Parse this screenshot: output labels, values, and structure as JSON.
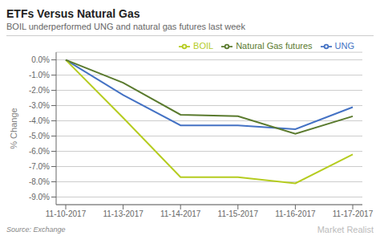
{
  "chart_data": {
    "type": "line",
    "title": "ETFs Versus Natural Gas",
    "subtitle": "BOIL underperformed UNG and natural gas futures last week",
    "source": "Source: Exchange",
    "watermark": "Market Realist",
    "y_label": "% Change",
    "categories": [
      "11-10-2017",
      "11-13-2017",
      "11-14-2017",
      "11-15-2017",
      "11-16-2017",
      "11-17-2017"
    ],
    "series": [
      {
        "name": "UNG",
        "color": "#4472c4",
        "values": [
          0.0,
          -2.3,
          -4.3,
          -4.3,
          -4.55,
          -3.1
        ]
      },
      {
        "name": "BOIL",
        "color": "#b5cc1f",
        "values": [
          0.0,
          -3.8,
          -7.7,
          -7.7,
          -8.1,
          -6.2
        ]
      },
      {
        "name": "Natural Gas futures",
        "color": "#5a7a2e",
        "values": [
          0.0,
          -1.5,
          -3.6,
          -3.7,
          -4.85,
          -3.7
        ]
      }
    ],
    "ylim": [
      -9.5,
      0.5
    ],
    "yticks": [
      {
        "value": 0.0,
        "label": "0.0%"
      },
      {
        "value": -1.0,
        "label": "-1.0%"
      },
      {
        "value": -2.0,
        "label": "-2.0%"
      },
      {
        "value": -3.0,
        "label": "-3.0%"
      },
      {
        "value": -4.0,
        "label": "-4.0%"
      },
      {
        "value": -5.0,
        "label": "-5.0%"
      },
      {
        "value": -6.0,
        "label": "-6.0%"
      },
      {
        "value": -7.0,
        "label": "-7.0%"
      },
      {
        "value": -8.0,
        "label": "-8.0%"
      },
      {
        "value": -9.0,
        "label": "-9.0%"
      }
    ],
    "grid": true,
    "legend": "upper right"
  }
}
